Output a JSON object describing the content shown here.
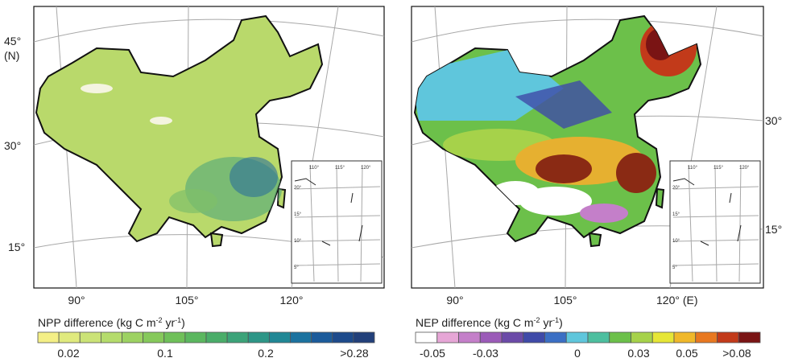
{
  "left_map": {
    "lat_labels": [
      "45°",
      "(N)",
      "30°",
      "15°"
    ],
    "lon_labels": [
      "90°",
      "105°",
      "120°"
    ],
    "inset_lon": [
      "110°",
      "115°",
      "120°"
    ],
    "inset_lat": [
      "20°",
      "15°",
      "10°",
      "5°"
    ],
    "legend": {
      "title": [
        "NPP difference (kg C m",
        "-2",
        " yr",
        "-1",
        ")"
      ],
      "colors": [
        "#f4ef86",
        "#e0ea7e",
        "#cbe377",
        "#b5dc6c",
        "#9dd262",
        "#86c95b",
        "#6fc059",
        "#5bb75f",
        "#4aad69",
        "#3ca379",
        "#2d9687",
        "#208795",
        "#1b729f",
        "#1b5b9b",
        "#1d4a8b",
        "#22407a"
      ],
      "ticks": [
        "0.02",
        "0.1",
        "0.2",
        ">0.28"
      ]
    }
  },
  "right_map": {
    "lat_labels": [
      "30°",
      "15°"
    ],
    "lon_labels": [
      "90°",
      "105°",
      "120° (E)"
    ],
    "inset_lon": [
      "110°",
      "115°",
      "120°"
    ],
    "inset_lat": [
      "20°",
      "15°",
      "10°",
      "5°"
    ],
    "legend": {
      "title": [
        "NEP difference (kg C m",
        "-2",
        " yr",
        "-1",
        ")"
      ],
      "colors": [
        "#ffffff",
        "#e6a6d6",
        "#c47fc9",
        "#9b5bb8",
        "#6b4aa8",
        "#3f4aa8",
        "#3b6fc4",
        "#5fc6dc",
        "#4dbf9f",
        "#6cc04a",
        "#a6d24a",
        "#e6e636",
        "#f0b82a",
        "#e87820",
        "#c23a1a",
        "#7a1414"
      ],
      "ticks": [
        "-0.05",
        "-0.03",
        "0",
        "0.03",
        "0.05",
        ">0.08"
      ]
    }
  }
}
